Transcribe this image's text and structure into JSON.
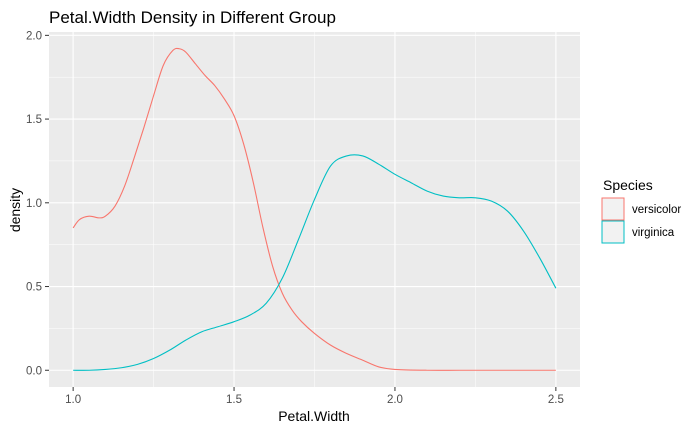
{
  "chart_data": {
    "type": "line",
    "title": "Petal.Width Density in Different Group",
    "xlabel": "Petal.Width",
    "ylabel": "density",
    "xlim": [
      0.925,
      2.575
    ],
    "ylim": [
      -0.1,
      2.02
    ],
    "x_ticks": [
      1.0,
      1.5,
      2.0,
      2.5
    ],
    "x_tick_labels": [
      "1.0",
      "1.5",
      "2.0",
      "2.5"
    ],
    "y_ticks": [
      0.0,
      0.5,
      1.0,
      1.5,
      2.0
    ],
    "y_tick_labels": [
      "0.0",
      "0.5",
      "1.0",
      "1.5",
      "2.0"
    ],
    "grid": true,
    "legend": {
      "title": "Species",
      "position": "right"
    },
    "series": [
      {
        "name": "versicolor",
        "color": "#F8766D",
        "x": [
          1.0,
          1.02,
          1.05,
          1.08,
          1.1,
          1.13,
          1.16,
          1.19,
          1.22,
          1.25,
          1.28,
          1.31,
          1.33,
          1.35,
          1.38,
          1.41,
          1.44,
          1.47,
          1.5,
          1.53,
          1.56,
          1.59,
          1.62,
          1.65,
          1.68,
          1.71,
          1.75,
          1.8,
          1.85,
          1.9,
          1.95,
          2.0,
          2.1,
          2.2,
          2.3,
          2.4,
          2.5
        ],
        "y": [
          0.85,
          0.9,
          0.92,
          0.91,
          0.92,
          0.98,
          1.1,
          1.27,
          1.45,
          1.64,
          1.82,
          1.91,
          1.92,
          1.9,
          1.83,
          1.76,
          1.7,
          1.62,
          1.52,
          1.35,
          1.12,
          0.85,
          0.62,
          0.46,
          0.36,
          0.29,
          0.22,
          0.15,
          0.1,
          0.06,
          0.02,
          0.005,
          0.0,
          0.0,
          0.0,
          0.0,
          0.0
        ]
      },
      {
        "name": "virginica",
        "color": "#00BFC4",
        "x": [
          1.0,
          1.05,
          1.1,
          1.15,
          1.2,
          1.25,
          1.3,
          1.35,
          1.4,
          1.45,
          1.5,
          1.55,
          1.6,
          1.65,
          1.7,
          1.75,
          1.8,
          1.85,
          1.9,
          1.95,
          2.0,
          2.05,
          2.1,
          2.15,
          2.2,
          2.25,
          2.3,
          2.35,
          2.4,
          2.45,
          2.5
        ],
        "y": [
          0.0,
          0.0,
          0.005,
          0.015,
          0.035,
          0.07,
          0.12,
          0.18,
          0.23,
          0.26,
          0.29,
          0.33,
          0.4,
          0.55,
          0.78,
          1.02,
          1.22,
          1.28,
          1.28,
          1.23,
          1.17,
          1.12,
          1.07,
          1.04,
          1.03,
          1.03,
          1.01,
          0.95,
          0.83,
          0.67,
          0.49
        ]
      }
    ]
  }
}
